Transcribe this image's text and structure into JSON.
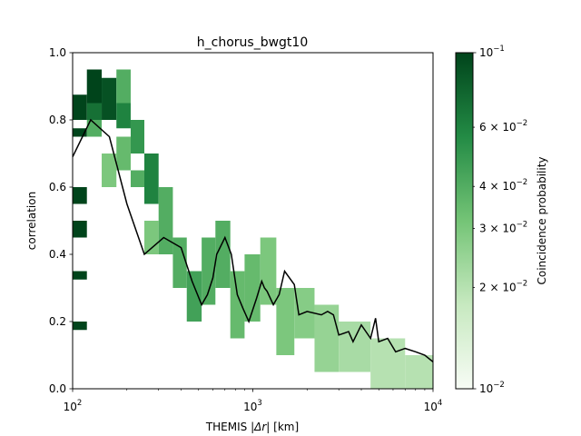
{
  "chart_data": {
    "type": "heatmap",
    "title": "h_chorus_bwgt10",
    "xlabel_prefix": "THEMIS |",
    "xlabel_sym": "Δr",
    "xlabel_suffix": "| [km]",
    "ylabel": "correlation",
    "xscale": "log",
    "xlim": [
      100,
      10000
    ],
    "ylim": [
      0.0,
      1.0
    ],
    "x_ticks": [
      {
        "value": 100,
        "base": "10",
        "exp": "2"
      },
      {
        "value": 1000,
        "base": "10",
        "exp": "3"
      },
      {
        "value": 10000,
        "base": "10",
        "exp": "4"
      }
    ],
    "y_ticks": [
      {
        "value": 0.0,
        "label": "0.0"
      },
      {
        "value": 0.2,
        "label": "0.2"
      },
      {
        "value": 0.4,
        "label": "0.4"
      },
      {
        "value": 0.6,
        "label": "0.6"
      },
      {
        "value": 0.8,
        "label": "0.8"
      },
      {
        "value": 1.0,
        "label": "1.0"
      }
    ],
    "heatmap_cells": [
      {
        "x0": 100,
        "x1": 120,
        "y0": 0.8,
        "y1": 0.875,
        "p": 0.1
      },
      {
        "x0": 100,
        "x1": 120,
        "y0": 0.75,
        "y1": 0.775,
        "p": 0.1
      },
      {
        "x0": 100,
        "x1": 120,
        "y0": 0.55,
        "y1": 0.6,
        "p": 0.1
      },
      {
        "x0": 100,
        "x1": 120,
        "y0": 0.45,
        "y1": 0.5,
        "p": 0.1
      },
      {
        "x0": 100,
        "x1": 120,
        "y0": 0.325,
        "y1": 0.35,
        "p": 0.1
      },
      {
        "x0": 100,
        "x1": 120,
        "y0": 0.175,
        "y1": 0.2,
        "p": 0.1
      },
      {
        "x0": 120,
        "x1": 145,
        "y0": 0.85,
        "y1": 0.95,
        "p": 0.1
      },
      {
        "x0": 120,
        "x1": 145,
        "y0": 0.8,
        "y1": 0.85,
        "p": 0.07
      },
      {
        "x0": 120,
        "x1": 145,
        "y0": 0.75,
        "y1": 0.8,
        "p": 0.04
      },
      {
        "x0": 145,
        "x1": 175,
        "y0": 0.8,
        "y1": 0.925,
        "p": 0.09
      },
      {
        "x0": 145,
        "x1": 175,
        "y0": 0.6,
        "y1": 0.7,
        "p": 0.03
      },
      {
        "x0": 175,
        "x1": 210,
        "y0": 0.85,
        "y1": 0.95,
        "p": 0.04
      },
      {
        "x0": 175,
        "x1": 210,
        "y0": 0.775,
        "y1": 0.85,
        "p": 0.06
      },
      {
        "x0": 175,
        "x1": 210,
        "y0": 0.65,
        "y1": 0.75,
        "p": 0.035
      },
      {
        "x0": 210,
        "x1": 250,
        "y0": 0.7,
        "y1": 0.8,
        "p": 0.05
      },
      {
        "x0": 210,
        "x1": 250,
        "y0": 0.6,
        "y1": 0.65,
        "p": 0.04
      },
      {
        "x0": 250,
        "x1": 300,
        "y0": 0.55,
        "y1": 0.7,
        "p": 0.06
      },
      {
        "x0": 250,
        "x1": 300,
        "y0": 0.4,
        "y1": 0.5,
        "p": 0.03
      },
      {
        "x0": 300,
        "x1": 360,
        "y0": 0.4,
        "y1": 0.6,
        "p": 0.04
      },
      {
        "x0": 360,
        "x1": 430,
        "y0": 0.3,
        "y1": 0.45,
        "p": 0.04
      },
      {
        "x0": 430,
        "x1": 520,
        "y0": 0.2,
        "y1": 0.35,
        "p": 0.045
      },
      {
        "x0": 520,
        "x1": 620,
        "y0": 0.25,
        "y1": 0.45,
        "p": 0.04
      },
      {
        "x0": 620,
        "x1": 750,
        "y0": 0.3,
        "y1": 0.5,
        "p": 0.04
      },
      {
        "x0": 750,
        "x1": 900,
        "y0": 0.15,
        "y1": 0.35,
        "p": 0.035
      },
      {
        "x0": 900,
        "x1": 1100,
        "y0": 0.2,
        "y1": 0.4,
        "p": 0.035
      },
      {
        "x0": 1100,
        "x1": 1350,
        "y0": 0.25,
        "y1": 0.45,
        "p": 0.03
      },
      {
        "x0": 1350,
        "x1": 1700,
        "y0": 0.1,
        "y1": 0.3,
        "p": 0.03
      },
      {
        "x0": 1700,
        "x1": 2200,
        "y0": 0.15,
        "y1": 0.3,
        "p": 0.028
      },
      {
        "x0": 2200,
        "x1": 3000,
        "y0": 0.05,
        "y1": 0.25,
        "p": 0.025
      },
      {
        "x0": 3000,
        "x1": 4500,
        "y0": 0.05,
        "y1": 0.2,
        "p": 0.022
      },
      {
        "x0": 4500,
        "x1": 7000,
        "y0": 0.0,
        "y1": 0.15,
        "p": 0.02
      },
      {
        "x0": 7000,
        "x1": 10000,
        "y0": 0.0,
        "y1": 0.1,
        "p": 0.02
      }
    ],
    "median_line": {
      "x": [
        100,
        126,
        160,
        200,
        250,
        320,
        400,
        460,
        520,
        560,
        600,
        630,
        700,
        760,
        820,
        880,
        950,
        1050,
        1120,
        1160,
        1200,
        1300,
        1400,
        1500,
        1700,
        1800,
        2000,
        2400,
        2600,
        2800,
        3000,
        3400,
        3600,
        4000,
        4500,
        4800,
        5000,
        5600,
        6200,
        7000,
        8000,
        9000,
        10000
      ],
      "y": [
        0.69,
        0.8,
        0.75,
        0.55,
        0.4,
        0.45,
        0.42,
        0.32,
        0.25,
        0.28,
        0.33,
        0.4,
        0.45,
        0.4,
        0.28,
        0.24,
        0.2,
        0.27,
        0.32,
        0.3,
        0.29,
        0.25,
        0.28,
        0.35,
        0.31,
        0.22,
        0.23,
        0.22,
        0.23,
        0.22,
        0.16,
        0.17,
        0.14,
        0.19,
        0.15,
        0.21,
        0.14,
        0.15,
        0.11,
        0.12,
        0.11,
        0.1,
        0.08
      ]
    },
    "colorbar": {
      "label": "Coincidence probability",
      "scale": "log",
      "range": [
        0.01,
        0.1
      ],
      "ticks": [
        {
          "value": 0.1,
          "base": "10",
          "exp": "−1"
        },
        {
          "value": 0.06,
          "coef": "6",
          "base": "10",
          "exp": "−2"
        },
        {
          "value": 0.04,
          "coef": "4",
          "base": "10",
          "exp": "−2"
        },
        {
          "value": 0.03,
          "coef": "3",
          "base": "10",
          "exp": "−2"
        },
        {
          "value": 0.02,
          "coef": "2",
          "base": "10",
          "exp": "−2"
        },
        {
          "value": 0.01,
          "base": "10",
          "exp": "−2"
        }
      ],
      "color_low": "#f7fcf5",
      "color_high": "#00441b"
    }
  }
}
